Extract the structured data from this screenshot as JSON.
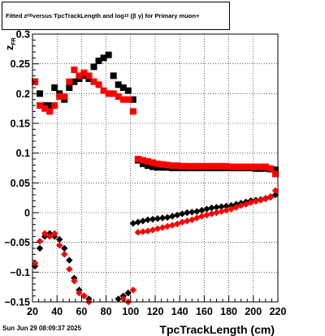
{
  "title": {
    "prefix": "Fitted  z",
    "sub1": "FR",
    "middle": "  versus TpcTrackLength and log",
    "sub2": "10",
    "suffix": "(β  γ) for Primary muon+"
  },
  "datestamp": "Sun Jun 29 08:09:37 2025",
  "chart_data": {
    "type": "scatter",
    "title": "Fitted z_FR versus TpcTrackLength and log10(βγ) for Primary muon+",
    "xlabel": "TpcTrackLength (cm)",
    "ylabel": "z_FR",
    "xlim": [
      20,
      220
    ],
    "ylim": [
      -0.15,
      0.3
    ],
    "x_ticks": [
      20,
      40,
      60,
      80,
      100,
      120,
      140,
      160,
      180,
      200,
      220
    ],
    "y_ticks": [
      -0.15,
      -0.1,
      -0.05,
      0,
      0.05,
      0.1,
      0.15,
      0.2,
      0.25,
      0.3
    ],
    "y_tick_labels": [
      "−0.15",
      "−0.1",
      "−0.05",
      "0",
      "0.05",
      "0.1",
      "0.15",
      "0.2",
      "0.25",
      "0.3"
    ],
    "grid": true,
    "colors": {
      "black_series": "#000000",
      "red_series": "#ff0000"
    },
    "series": [
      {
        "marker": "square",
        "color": "#000000",
        "x": [
          22,
          26,
          30,
          34,
          38,
          42,
          46,
          50,
          54,
          58,
          62,
          66,
          70,
          74,
          78,
          82,
          86,
          90,
          94,
          98,
          102,
          106,
          110,
          114,
          118,
          122,
          126,
          130,
          134,
          138,
          142,
          146,
          150,
          154,
          158,
          162,
          166,
          170,
          174,
          178,
          182,
          186,
          190,
          194,
          198,
          202,
          206,
          210,
          214,
          218
        ],
        "y": [
          0.22,
          0.2,
          0.18,
          0.18,
          0.21,
          0.2,
          0.19,
          0.21,
          0.22,
          0.225,
          0.23,
          0.225,
          0.245,
          0.255,
          0.26,
          0.265,
          0.23,
          0.215,
          0.21,
          0.205,
          0.19,
          0.088,
          0.082,
          0.079,
          0.077,
          0.076,
          0.076,
          0.076,
          0.075,
          0.075,
          0.075,
          0.075,
          0.075,
          0.075,
          0.075,
          0.075,
          0.075,
          0.075,
          0.075,
          0.075,
          0.075,
          0.075,
          0.075,
          0.075,
          0.075,
          0.074,
          0.074,
          0.074,
          0.073,
          0.072
        ]
      },
      {
        "marker": "square",
        "color": "#ff0000",
        "x": [
          22,
          26,
          30,
          34,
          38,
          42,
          46,
          50,
          54,
          58,
          62,
          66,
          70,
          74,
          78,
          82,
          86,
          90,
          94,
          98,
          102,
          106,
          110,
          114,
          118,
          122,
          126,
          130,
          134,
          138,
          142,
          146,
          150,
          154,
          158,
          162,
          166,
          170,
          174,
          178,
          182,
          186,
          190,
          194,
          198,
          202,
          206,
          210,
          214,
          218
        ],
        "y": [
          0.22,
          0.18,
          0.175,
          0.17,
          0.18,
          0.195,
          0.195,
          0.22,
          0.24,
          0.23,
          0.235,
          0.23,
          0.22,
          0.215,
          0.205,
          0.2,
          0.2,
          0.195,
          0.19,
          0.19,
          0.17,
          0.09,
          0.088,
          0.086,
          0.084,
          0.082,
          0.081,
          0.08,
          0.079,
          0.079,
          0.078,
          0.078,
          0.078,
          0.078,
          0.078,
          0.078,
          0.078,
          0.078,
          0.078,
          0.078,
          0.077,
          0.077,
          0.077,
          0.077,
          0.077,
          0.077,
          0.077,
          0.077,
          0.074,
          0.065
        ]
      },
      {
        "marker": "diamond",
        "color": "#000000",
        "x": [
          22,
          26,
          30,
          34,
          38,
          42,
          46,
          50,
          54,
          58,
          62,
          66,
          90,
          94,
          98,
          102,
          106,
          110,
          114,
          118,
          122,
          126,
          130,
          134,
          138,
          142,
          146,
          150,
          154,
          158,
          162,
          166,
          170,
          174,
          178,
          182,
          186,
          190,
          194,
          198,
          202,
          206,
          210,
          214,
          218
        ],
        "y": [
          -0.09,
          -0.06,
          -0.04,
          -0.035,
          -0.04,
          -0.045,
          -0.06,
          -0.08,
          -0.11,
          -0.13,
          -0.14,
          -0.145,
          -0.145,
          -0.14,
          -0.135,
          -0.018,
          -0.016,
          -0.014,
          -0.012,
          -0.011,
          -0.01,
          -0.009,
          -0.008,
          -0.006,
          -0.004,
          -0.002,
          0,
          0.001,
          0.002,
          0.004,
          0.006,
          0.008,
          0.009,
          0.01,
          0.011,
          0.012,
          0.014,
          0.016,
          0.018,
          0.02,
          0.021,
          0.022,
          0.024,
          0.026,
          0.03
        ]
      },
      {
        "marker": "diamond",
        "color": "#ff0000",
        "x": [
          22,
          26,
          30,
          34,
          38,
          42,
          46,
          50,
          54,
          58,
          62,
          66,
          94,
          98,
          102,
          106,
          110,
          114,
          118,
          122,
          126,
          130,
          134,
          138,
          142,
          146,
          150,
          154,
          158,
          162,
          166,
          170,
          174,
          178,
          182,
          186,
          190,
          194,
          198,
          202,
          206,
          210,
          214,
          218
        ],
        "y": [
          -0.085,
          -0.048,
          -0.035,
          -0.04,
          -0.035,
          -0.055,
          -0.07,
          -0.095,
          -0.115,
          -0.135,
          -0.14,
          -0.15,
          -0.145,
          -0.15,
          -0.13,
          -0.033,
          -0.032,
          -0.031,
          -0.029,
          -0.027,
          -0.025,
          -0.023,
          -0.021,
          -0.019,
          -0.016,
          -0.014,
          -0.012,
          -0.009,
          -0.006,
          -0.004,
          -0.002,
          0,
          0.002,
          0.004,
          0.006,
          0.009,
          0.012,
          0.014,
          0.017,
          0.019,
          0.021,
          0.023,
          0.027,
          0.037
        ]
      }
    ]
  }
}
